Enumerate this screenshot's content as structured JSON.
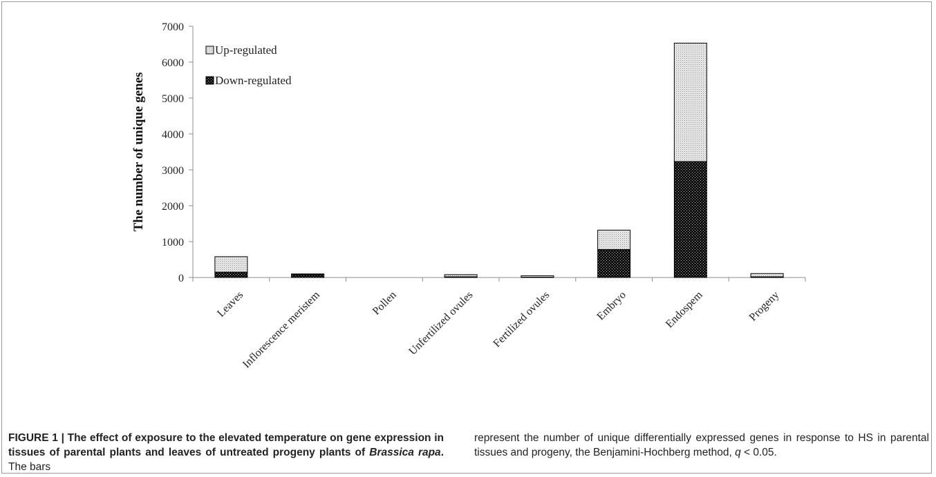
{
  "chart_data": {
    "type": "bar",
    "stacked": true,
    "ylabel": "The number of unique genes",
    "xlabel": "",
    "ylim": [
      0,
      7000
    ],
    "yticks": [
      0,
      1000,
      2000,
      3000,
      4000,
      5000,
      6000,
      7000
    ],
    "categories": [
      "Leaves",
      "Inflorescence meristem",
      "Pollen",
      "Unfertilized ovules",
      "Fertilized ovules",
      "Embryo",
      "Endospem",
      "Progeny"
    ],
    "series": [
      {
        "name": "Down-regulated",
        "values": [
          150,
          80,
          0,
          20,
          10,
          780,
          3230,
          20
        ],
        "pattern": "dark-dotted"
      },
      {
        "name": "Up-regulated",
        "values": [
          430,
          20,
          0,
          60,
          40,
          540,
          3300,
          90
        ],
        "pattern": "light-dotted"
      }
    ],
    "legend": {
      "placement": "top-left",
      "order": [
        "Up-regulated",
        "Down-regulated"
      ]
    },
    "grid": false
  },
  "caption": {
    "figure_label": "FIGURE 1 | The effect of exposure to the elevated temperature on gene expression in tissues of parental plants and leaves of untreated progeny plants of ",
    "species": "Brassica rapa",
    "label_end": ".",
    "left_tail": " The bars",
    "right_text": "represent the number of unique differentially expressed genes in response to HS in parental tissues and progeny, the Benjamini-Hochberg method, ",
    "q_symbol": "q",
    "q_threshold": " < 0.05."
  },
  "colors": {
    "axis": "#8c8c8c",
    "down_fill": "#111111",
    "up_fill": "#e6e6e6",
    "text": "#222222"
  }
}
